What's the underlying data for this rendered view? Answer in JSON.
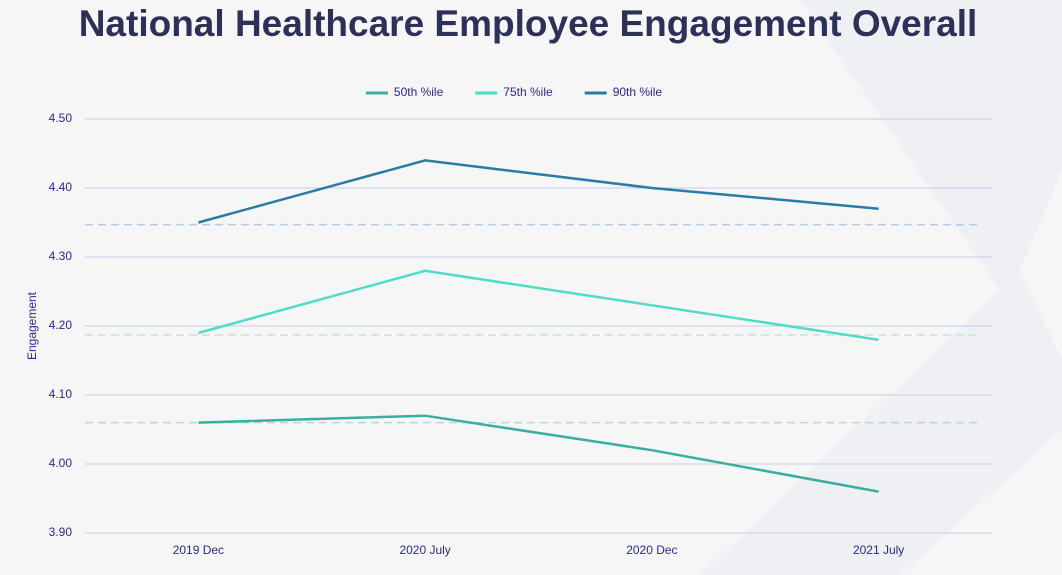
{
  "chart_data": {
    "type": "line",
    "title": "National Healthcare Employee Engagement Overall",
    "y_label": "Engagement",
    "categories": [
      "2019 Dec",
      "2020 July",
      "2020 Dec",
      "2021 July"
    ],
    "series": [
      {
        "name": "50th %ile",
        "color": "#3aaf9f",
        "values": [
          4.06,
          4.07,
          4.02,
          3.96
        ]
      },
      {
        "name": "75th %ile",
        "color": "#4fdcc4",
        "values": [
          4.19,
          4.28,
          4.23,
          4.18
        ]
      },
      {
        "name": "90th %ile",
        "color": "#2a7ca3",
        "values": [
          4.35,
          4.44,
          4.4,
          4.37
        ]
      }
    ],
    "reference_lines": [
      {
        "value": 4.347,
        "color": "#b6c9df"
      },
      {
        "value": 4.187,
        "color": "#c9e3da"
      },
      {
        "value": 4.06,
        "color": "#bcd8d1"
      }
    ],
    "ylim": [
      3.9,
      4.5
    ],
    "yticks": [
      {
        "value": 3.9,
        "label": "3.90"
      },
      {
        "value": 4.0,
        "label": "4.00"
      },
      {
        "value": 4.1,
        "label": "4.10"
      },
      {
        "value": 4.2,
        "label": "4.20"
      },
      {
        "value": 4.3,
        "label": "4.30"
      },
      {
        "value": 4.4,
        "label": "4.40"
      },
      {
        "value": 4.5,
        "label": "4.50"
      }
    ],
    "grid": true,
    "legend": "top"
  }
}
